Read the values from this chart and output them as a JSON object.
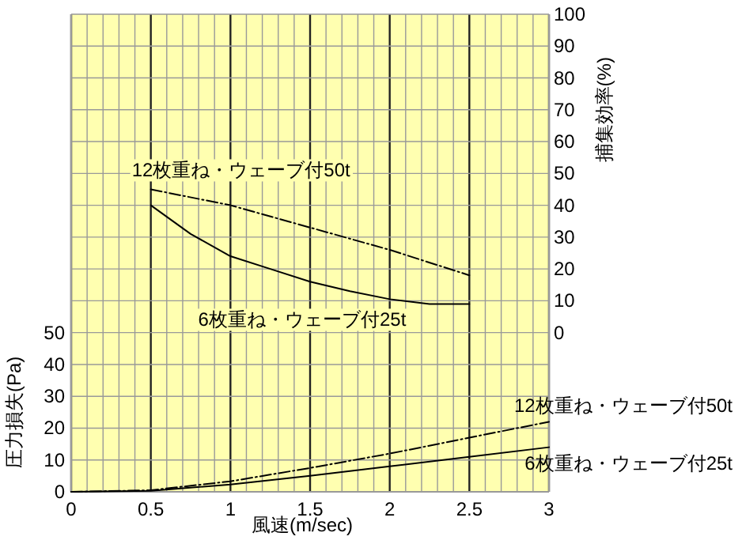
{
  "chart_data": {
    "type": "line",
    "xlabel": "風速(m/sec)",
    "ylabel": "圧力損失(Pa)",
    "y2label": "捕集効率(%)",
    "xlim": [
      0,
      3
    ],
    "xticks": [
      0,
      0.5,
      1,
      1.5,
      2,
      2.5,
      3
    ],
    "ylim": [
      0,
      150
    ],
    "yticks": [
      0,
      10,
      20,
      30,
      40,
      50
    ],
    "y2lim": [
      -50,
      100
    ],
    "y2ticks": [
      0,
      10,
      20,
      30,
      40,
      50,
      60,
      70,
      80,
      90,
      100
    ],
    "grid": true,
    "series": [
      {
        "name": "12枚重ね・ウェーブ付50t",
        "color": "#000000",
        "axis": "y2",
        "line_style": "dashed",
        "x": [
          0.5,
          1,
          1.5,
          2,
          2.5
        ],
        "values": [
          45,
          40,
          33,
          26,
          18
        ]
      },
      {
        "name": "6枚重ね・ウェーブ付25t",
        "color": "#000000",
        "axis": "y2",
        "line_style": "solid",
        "x": [
          0.5,
          0.75,
          1,
          1.25,
          1.5,
          1.75,
          2,
          2.25,
          2.5
        ],
        "values": [
          40,
          31,
          24,
          20,
          16,
          13,
          10.5,
          9,
          9
        ]
      },
      {
        "name": "12枚重ね・ウェーブ付50t",
        "color": "#000000",
        "line_style": "dashed",
        "x": [
          0,
          0.5,
          1,
          1.5,
          2,
          2.5,
          3
        ],
        "values": [
          0,
          0.5,
          3.3,
          7.5,
          12,
          17,
          22
        ]
      },
      {
        "name": "6枚重ね・ウェーブ付25t",
        "color": "#000000",
        "line_style": "solid",
        "x": [
          0,
          0.5,
          1,
          1.5,
          2,
          2.5,
          3
        ],
        "values": [
          0,
          0.3,
          2.3,
          5,
          8,
          11,
          14
        ]
      }
    ]
  }
}
